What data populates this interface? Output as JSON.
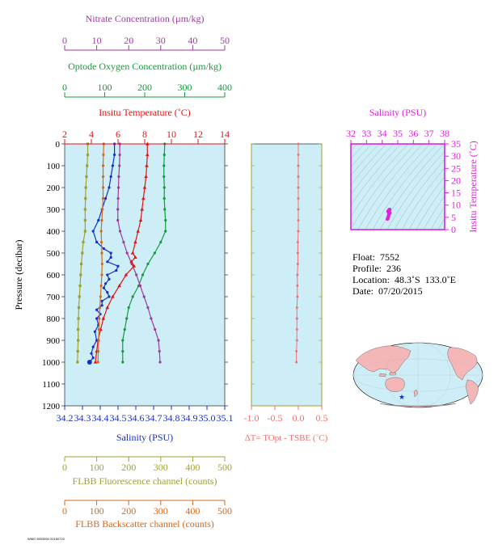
{
  "colors": {
    "nitrate": "#9b3c9b",
    "oxygen": "#159a3c",
    "temperature": "#e01414",
    "salinity": "#1430c8",
    "fluorescence": "#a0a032",
    "backscatter": "#d2691e",
    "delta_t": "#f07070",
    "ts_panel": "#e020e0",
    "panel_bg": "#cdeef6",
    "land": "#f4b6b6"
  },
  "float_info": {
    "float": "Float:  7552",
    "profile": "Profile:  236",
    "location": "Location:  48.3˚S  133.0˚E",
    "date": "Date:  07/20/2015"
  },
  "footer_text": "WMO 5903594 20150720",
  "chart_data": [
    {
      "type": "line",
      "panel": "main-profile",
      "ylabel": "Pressure (decibar)",
      "ylim": [
        1200,
        0
      ],
      "yticks": [
        "0",
        "100",
        "200",
        "300",
        "400",
        "500",
        "600",
        "700",
        "800",
        "900",
        "1000",
        "1100",
        "1200"
      ],
      "axes": {
        "nitrate": {
          "label": "Nitrate Concentration (µm/kg)",
          "lim": [
            0,
            50
          ],
          "ticks": [
            "0",
            "10",
            "20",
            "30",
            "40",
            "50"
          ]
        },
        "oxygen": {
          "label": "Optode Oxygen Concentration (µm/kg)",
          "lim": [
            0,
            400
          ],
          "ticks": [
            "0",
            "100",
            "200",
            "300",
            "400"
          ]
        },
        "temperature": {
          "label": "Insitu Temperature (˚C)",
          "lim": [
            2,
            14
          ],
          "ticks": [
            "2",
            "4",
            "6",
            "8",
            "10",
            "12",
            "14"
          ]
        },
        "salinity": {
          "label": "Salinity (PSU)",
          "lim": [
            34.2,
            35.1
          ],
          "ticks": [
            "34.2",
            "34.3",
            "34.4",
            "34.5",
            "34.6",
            "34.7",
            "34.8",
            "34.9",
            "35.0",
            "35.1"
          ]
        },
        "fluorescence": {
          "label": "FLBB Fluorescence channel (counts)",
          "lim": [
            0,
            500
          ],
          "ticks": [
            "0",
            "100",
            "200",
            "300",
            "400",
            "500"
          ]
        },
        "backscatter": {
          "label": "FLBB Backscatter channel (counts)",
          "lim": [
            0,
            500
          ],
          "ticks": [
            "0",
            "100",
            "200",
            "300",
            "400",
            "500"
          ]
        }
      },
      "series": [
        {
          "key": "oxygen",
          "values": [
            [
              250,
              0
            ],
            [
              249,
              50
            ],
            [
              248,
              100
            ],
            [
              248,
              150
            ],
            [
              249,
              200
            ],
            [
              249,
              250
            ],
            [
              250,
              300
            ],
            [
              252,
              350
            ],
            [
              252,
              400
            ],
            [
              240,
              450
            ],
            [
              225,
              500
            ],
            [
              208,
              550
            ],
            [
              195,
              600
            ],
            [
              185,
              650
            ],
            [
              170,
              700
            ],
            [
              160,
              750
            ],
            [
              155,
              800
            ],
            [
              150,
              850
            ],
            [
              145,
              900
            ],
            [
              145,
              950
            ],
            [
              145,
              1000
            ]
          ]
        },
        {
          "key": "nitrate",
          "values": [
            [
              17.2,
              0
            ],
            [
              17.2,
              50
            ],
            [
              17.1,
              100
            ],
            [
              16.9,
              150
            ],
            [
              16.8,
              200
            ],
            [
              16.7,
              250
            ],
            [
              16.6,
              300
            ],
            [
              16.6,
              350
            ],
            [
              17.3,
              400
            ],
            [
              18.4,
              450
            ],
            [
              19.5,
              500
            ],
            [
              21,
              550
            ],
            [
              22.4,
              600
            ],
            [
              23.6,
              650
            ],
            [
              24.8,
              700
            ],
            [
              26,
              750
            ],
            [
              27,
              800
            ],
            [
              28.2,
              850
            ],
            [
              29.3,
              900
            ],
            [
              29.6,
              950
            ],
            [
              29.8,
              1000
            ]
          ]
        },
        {
          "key": "temperature",
          "values": [
            [
              8.2,
              0
            ],
            [
              8.2,
              50
            ],
            [
              8.15,
              100
            ],
            [
              8.1,
              150
            ],
            [
              8.0,
              200
            ],
            [
              7.9,
              250
            ],
            [
              7.8,
              300
            ],
            [
              7.7,
              350
            ],
            [
              7.5,
              400
            ],
            [
              7.3,
              450
            ],
            [
              7.1,
              500
            ],
            [
              7.3,
              520
            ],
            [
              7.0,
              540
            ],
            [
              7.2,
              560
            ],
            [
              6.6,
              600
            ],
            [
              6.1,
              650
            ],
            [
              5.6,
              700
            ],
            [
              5.2,
              750
            ],
            [
              4.9,
              800
            ],
            [
              4.7,
              850
            ],
            [
              4.5,
              900
            ],
            [
              4.4,
              950
            ],
            [
              4.3,
              1000
            ]
          ]
        },
        {
          "key": "salinity",
          "values": [
            [
              34.48,
              0
            ],
            [
              34.48,
              50
            ],
            [
              34.47,
              100
            ],
            [
              34.46,
              150
            ],
            [
              34.45,
              200
            ],
            [
              34.43,
              250
            ],
            [
              34.41,
              300
            ],
            [
              34.39,
              350
            ],
            [
              34.36,
              400
            ],
            [
              34.38,
              450
            ],
            [
              34.42,
              480
            ],
            [
              34.46,
              500
            ],
            [
              34.46,
              520
            ],
            [
              34.44,
              540
            ],
            [
              34.5,
              560
            ],
            [
              34.49,
              580
            ],
            [
              34.44,
              600
            ],
            [
              34.45,
              620
            ],
            [
              34.43,
              640
            ],
            [
              34.42,
              660
            ],
            [
              34.44,
              680
            ],
            [
              34.45,
              700
            ],
            [
              34.41,
              720
            ],
            [
              34.41,
              740
            ],
            [
              34.38,
              760
            ],
            [
              34.4,
              780
            ],
            [
              34.38,
              800
            ],
            [
              34.39,
              830
            ],
            [
              34.37,
              860
            ],
            [
              34.38,
              900
            ],
            [
              34.36,
              930
            ],
            [
              34.35,
              960
            ],
            [
              34.36,
              980
            ],
            [
              34.34,
              1000
            ]
          ]
        },
        {
          "key": "fluorescence",
          "values": [
            [
              72,
              0
            ],
            [
              72,
              50
            ],
            [
              70,
              100
            ],
            [
              68,
              150
            ],
            [
              66,
              200
            ],
            [
              65,
              250
            ],
            [
              64,
              300
            ],
            [
              64,
              350
            ],
            [
              64,
              400
            ],
            [
              58,
              450
            ],
            [
              55,
              500
            ],
            [
              52,
              550
            ],
            [
              50,
              600
            ],
            [
              48,
              650
            ],
            [
              46,
              700
            ],
            [
              44,
              750
            ],
            [
              43,
              800
            ],
            [
              42,
              850
            ],
            [
              42,
              900
            ],
            [
              41,
              950
            ],
            [
              40,
              1000
            ]
          ]
        },
        {
          "key": "backscatter",
          "values": [
            [
              122,
              0
            ],
            [
              121,
              50
            ],
            [
              120,
              100
            ],
            [
              120,
              150
            ],
            [
              120,
              200
            ],
            [
              120,
              250
            ],
            [
              118,
              300
            ],
            [
              116,
              350
            ],
            [
              114,
              400
            ],
            [
              115,
              450
            ],
            [
              116,
              500
            ],
            [
              117,
              550
            ],
            [
              116,
              600
            ],
            [
              114,
              650
            ],
            [
              112,
              700
            ],
            [
              110,
              750
            ],
            [
              108,
              800
            ],
            [
              107,
              850
            ],
            [
              106,
              900
            ],
            [
              105,
              950
            ],
            [
              104,
              1000
            ]
          ]
        }
      ]
    },
    {
      "type": "scatter",
      "panel": "delta-t",
      "xlabel": "ΔT= TOpt - TSBE (˚C)",
      "xlim": [
        -1.0,
        0.5
      ],
      "xticks": [
        "-1.0",
        "-0.5",
        "0.0",
        "0.5"
      ],
      "ylim": [
        1200,
        0
      ],
      "values": [
        [
          0.0,
          0
        ],
        [
          0.0,
          50
        ],
        [
          0.0,
          100
        ],
        [
          0.0,
          150
        ],
        [
          0.0,
          200
        ],
        [
          0.0,
          250
        ],
        [
          0.0,
          300
        ],
        [
          0.0,
          350
        ],
        [
          0.0,
          400
        ],
        [
          -0.01,
          450
        ],
        [
          -0.01,
          500
        ],
        [
          -0.01,
          550
        ],
        [
          -0.02,
          600
        ],
        [
          -0.02,
          650
        ],
        [
          -0.02,
          700
        ],
        [
          -0.03,
          750
        ],
        [
          -0.03,
          800
        ],
        [
          -0.03,
          850
        ],
        [
          -0.03,
          900
        ],
        [
          -0.04,
          950
        ],
        [
          -0.04,
          1000
        ]
      ]
    },
    {
      "type": "scatter",
      "panel": "ts-diagram",
      "xlabel": "Salinity (PSU)",
      "ylabel": "Insitu Temperature (˚C)",
      "xlim": [
        32,
        38
      ],
      "ylim": [
        0,
        35
      ],
      "xticks": [
        "32",
        "33",
        "34",
        "35",
        "36",
        "37",
        "38"
      ],
      "yticks": [
        "0",
        "5",
        "10",
        "15",
        "20",
        "25",
        "30",
        "35"
      ],
      "values": [
        [
          34.48,
          8.2
        ],
        [
          34.47,
          8.1
        ],
        [
          34.45,
          8.0
        ],
        [
          34.42,
          7.8
        ],
        [
          34.38,
          7.5
        ],
        [
          34.4,
          7.2
        ],
        [
          34.46,
          7.0
        ],
        [
          34.5,
          6.8
        ],
        [
          34.44,
          6.5
        ],
        [
          34.43,
          6.1
        ],
        [
          34.41,
          5.6
        ],
        [
          34.39,
          5.1
        ],
        [
          34.37,
          4.8
        ],
        [
          34.36,
          4.5
        ],
        [
          34.34,
          4.3
        ]
      ]
    },
    {
      "type": "map",
      "panel": "location-map",
      "marker": {
        "lat": -48.3,
        "lon": 133.0
      }
    }
  ]
}
